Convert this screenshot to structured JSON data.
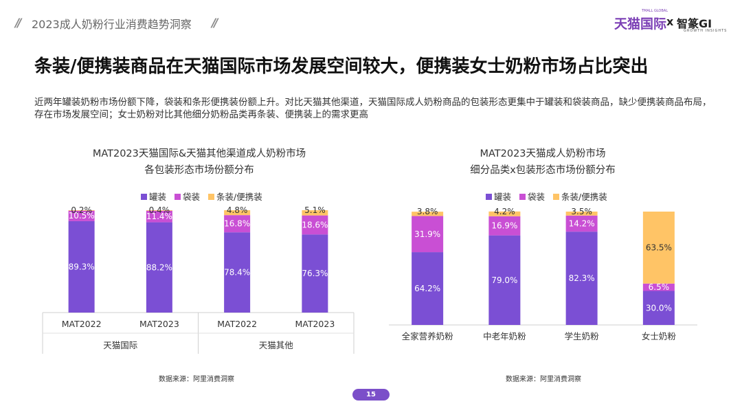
{
  "header": {
    "section_title": "2023成人奶粉行业消费趋势洞察",
    "brand_tmall": "天猫国际",
    "brand_tmall_sub": "TMALL GLOBAL",
    "brand_x": "x",
    "brand_gi": "智篆GI",
    "brand_gi_sub": "GROWTH INSIGHTS"
  },
  "slide": {
    "title": "条装/便携装商品在天猫国际市场发展空间较大，便携装女士奶粉市场占比突出",
    "description": "近两年罐装奶粉市场份额下降，袋装和条形便携装份额上升。对比天猫其他渠道，天猫国际成人奶粉商品的包装形态更集中于罐装和袋装商品，缺少便携装商品布局，存在市场发展空间；女士奶粉对比其他细分奶粉品类再条装、便携装上的需求更高",
    "page_number": "15"
  },
  "colors": {
    "can": "#7b4fd4",
    "bag": "#c94fd4",
    "strip": "#ffc466"
  },
  "chart_data": [
    {
      "type": "bar",
      "stacked": true,
      "title": "MAT2023天猫国际&天猫其他渠道成人奶粉市场",
      "subtitle": "各包装形态市场份额分布",
      "legend": [
        "罐装",
        "袋装",
        "条装/便携装"
      ],
      "categories": [
        "MAT2022",
        "MAT2023",
        "MAT2022",
        "MAT2023"
      ],
      "groups": [
        {
          "label": "天猫国际",
          "span": 2
        },
        {
          "label": "天猫其他",
          "span": 2
        }
      ],
      "series": [
        {
          "name": "罐装",
          "values": [
            89.3,
            88.2,
            78.4,
            76.3
          ],
          "labels": [
            "89.3%",
            "88.2%",
            "78.4%",
            "76.3%"
          ]
        },
        {
          "name": "袋装",
          "values": [
            10.5,
            11.4,
            16.8,
            18.6
          ],
          "labels": [
            "10.5%",
            "11.4%",
            "16.8%",
            "18.6%"
          ]
        },
        {
          "name": "条装/便携装",
          "values": [
            0.2,
            0.4,
            4.8,
            5.1
          ],
          "labels": [
            "0.2%",
            "0.4%",
            "4.8%",
            "5.1%"
          ]
        }
      ],
      "source": "数据来源：阿里消费洞察"
    },
    {
      "type": "bar",
      "stacked": true,
      "title": "MAT2023天猫成人奶粉市场",
      "subtitle": "细分品类x包装形态市场份额分布",
      "legend": [
        "罐装",
        "袋装",
        "条装/便携装"
      ],
      "categories": [
        "全家营养奶粉",
        "中老年奶粉",
        "学生奶粉",
        "女士奶粉"
      ],
      "series": [
        {
          "name": "罐装",
          "values": [
            64.2,
            79.0,
            82.3,
            30.0
          ],
          "labels": [
            "64.2%",
            "79.0%",
            "82.3%",
            "30.0%"
          ]
        },
        {
          "name": "袋装",
          "values": [
            31.9,
            16.9,
            14.2,
            6.5
          ],
          "labels": [
            "31.9%",
            "16.9%",
            "14.2%",
            "6.5%"
          ]
        },
        {
          "name": "条装/便携装",
          "values": [
            3.8,
            4.2,
            3.5,
            63.5
          ],
          "labels": [
            "3.8%",
            "4.2%",
            "3.5%",
            "63.5%"
          ]
        }
      ],
      "source": "数据来源：阿里消费洞察"
    }
  ]
}
